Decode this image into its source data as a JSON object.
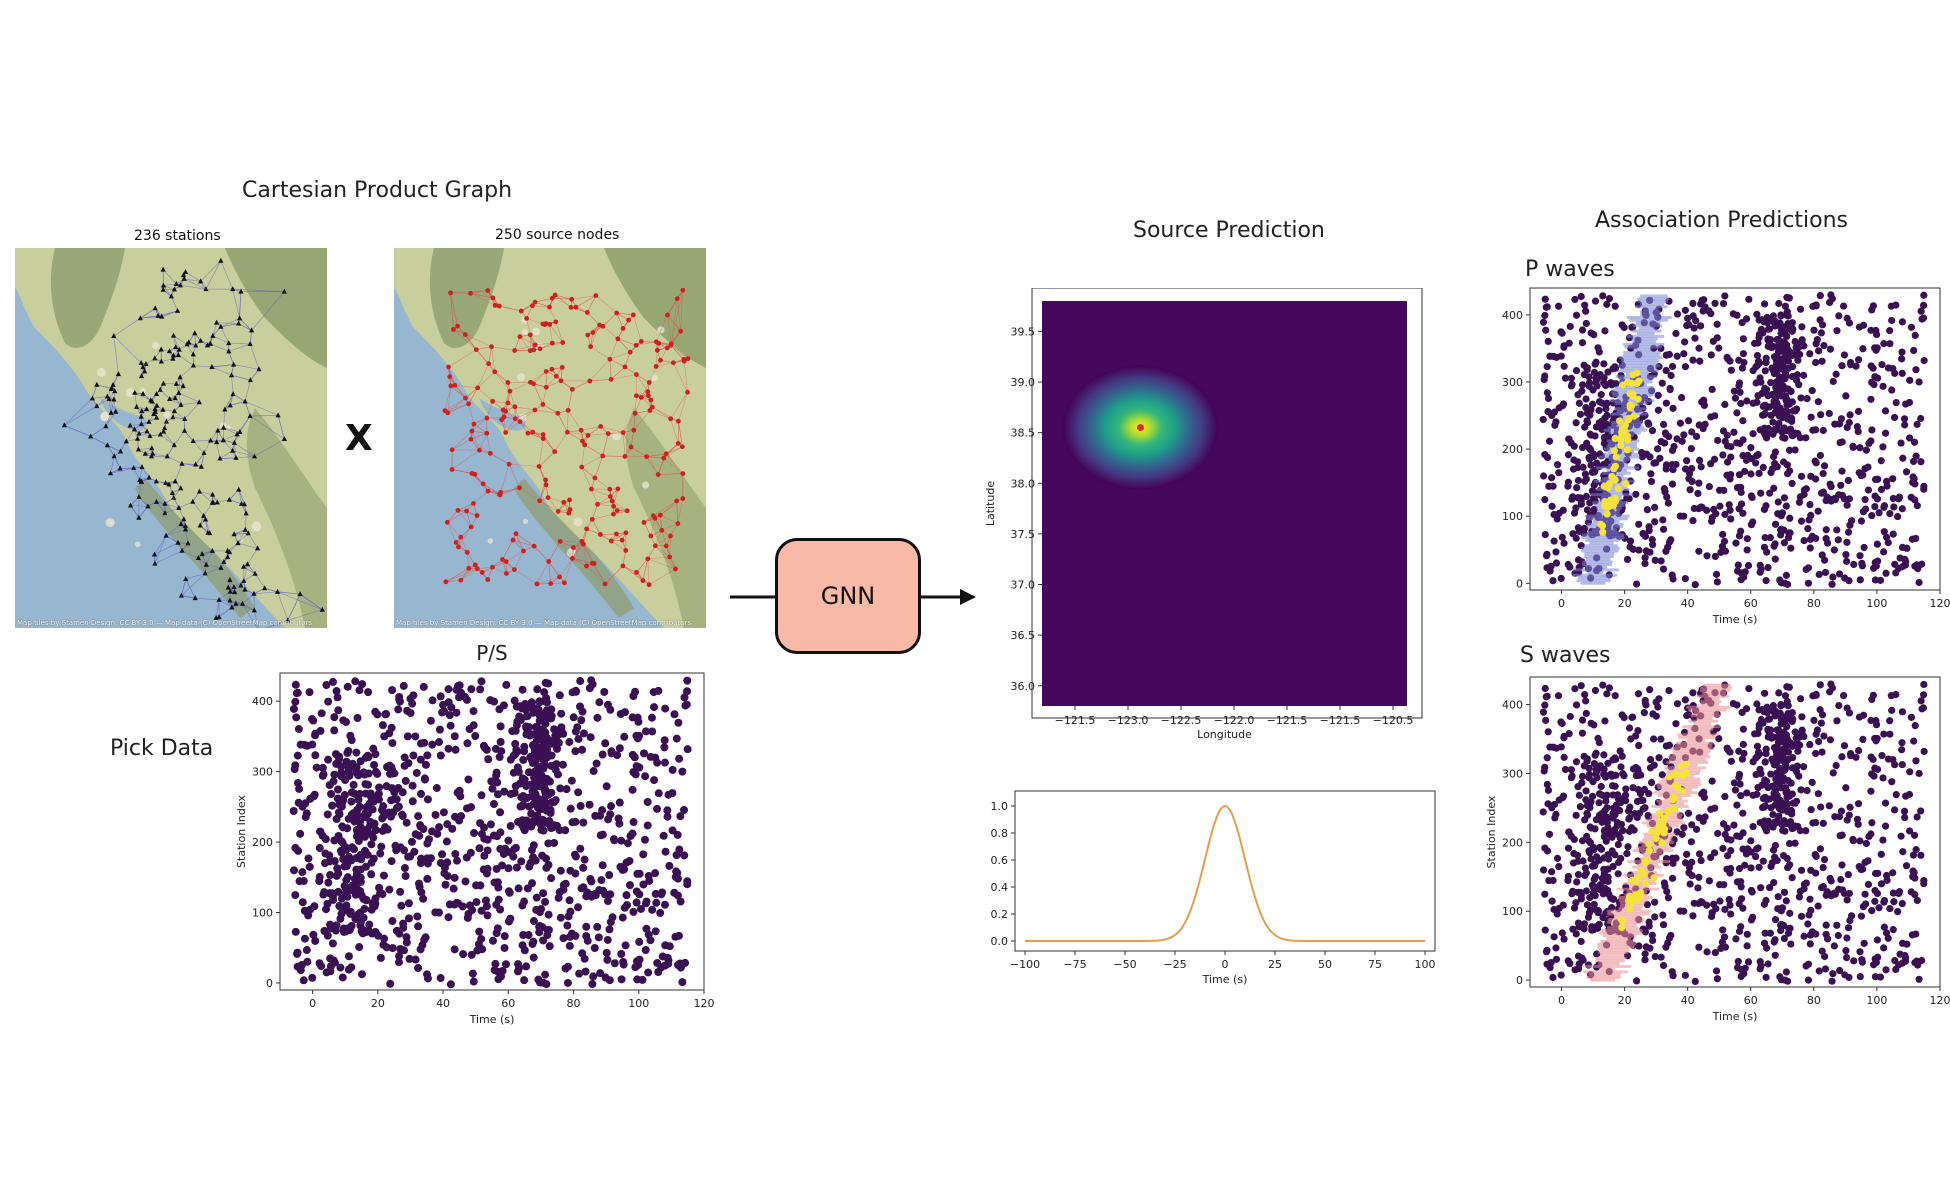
{
  "figure": {
    "left": {
      "title": "Cartesian Product Graph",
      "station_map_caption": "236 stations",
      "source_map_caption": "250 source nodes",
      "product_symbol": "X",
      "map_credit": "Map tiles by Stamen Design, CC BY 3.0 — Map data (C) OpenStreetMap contributors",
      "pick_data_label": "Pick Data"
    },
    "model": {
      "label": "GNN"
    },
    "middle": {
      "title": "Source Prediction"
    },
    "right": {
      "title": "Association Predictions",
      "p_label": "P waves",
      "s_label": "S waves"
    }
  },
  "chart_data": [
    {
      "id": "pick-data",
      "type": "scatter",
      "title": "P/S",
      "xlabel": "Time (s)",
      "ylabel": "Station Index",
      "xlim": [
        -10,
        120
      ],
      "ylim": [
        -10,
        440
      ],
      "xticks": [
        0,
        20,
        40,
        60,
        80,
        100,
        120
      ],
      "yticks": [
        0,
        100,
        200,
        300,
        400
      ],
      "marker_color": "#3b0f53",
      "notes": "about 1200 picks; background picks uniformly spread, two dense clusters near t=12 s (stations 70-320) and t=70 s (stations 220-400)"
    },
    {
      "id": "source-heatmap",
      "type": "heatmap",
      "xlabel": "Longitude",
      "ylabel": "Latitude",
      "xtick_labels": [
        "−121.5",
        "−123.0",
        "−122.5",
        "−122.0",
        "−121.5",
        "−121.5",
        "−120.5"
      ],
      "yticks": [
        36.0,
        36.5,
        37.0,
        37.5,
        38.0,
        38.5,
        39.0,
        39.5
      ],
      "ylim": [
        35.8,
        39.8
      ],
      "peak": {
        "lon": -122.65,
        "lat": 38.55
      },
      "colormap": "viridis"
    },
    {
      "id": "origin-time",
      "type": "line",
      "xlabel": "Time (s)",
      "xlim": [
        -100,
        100
      ],
      "ylim": [
        0,
        1.0
      ],
      "xticks": [
        -100,
        -75,
        -50,
        -25,
        0,
        25,
        50,
        75,
        100
      ],
      "yticks": [
        0.0,
        0.2,
        0.4,
        0.6,
        0.8,
        1.0
      ],
      "curve": "gaussian",
      "peak_x": 0,
      "peak_y": 1.0,
      "width_s": 10,
      "color": "#e3a04a"
    },
    {
      "id": "p-association",
      "type": "scatter",
      "xlabel": "Time (s)",
      "xlim": [
        -10,
        120
      ],
      "ylim": [
        -10,
        440
      ],
      "xticks": [
        0,
        20,
        40,
        60,
        80,
        100,
        120
      ],
      "yticks": [
        0,
        100,
        200,
        300,
        400
      ],
      "band_color": "#7a86d6",
      "highlight_color": "#f5e23b"
    },
    {
      "id": "s-association",
      "type": "scatter",
      "xlabel": "Time (s)",
      "ylabel": "Station Index",
      "xlim": [
        -10,
        120
      ],
      "ylim": [
        -10,
        440
      ],
      "xticks": [
        0,
        20,
        40,
        60,
        80,
        100,
        120
      ],
      "yticks": [
        0,
        100,
        200,
        300,
        400
      ],
      "band_color": "#ea8f92",
      "highlight_color": "#f5e23b"
    }
  ]
}
